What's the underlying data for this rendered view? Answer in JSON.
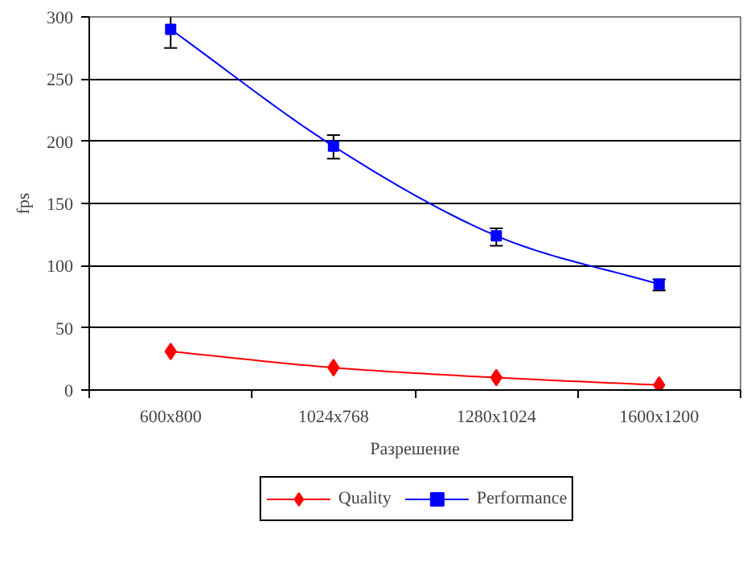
{
  "chart_data": {
    "type": "line",
    "xlabel": "Разрешение",
    "ylabel": "fps",
    "categories": [
      "600x800",
      "1024x768",
      "1280x1024",
      "1600x1200"
    ],
    "series": [
      {
        "name": "Quality",
        "color": "#ff0000",
        "marker": "diamond",
        "values": [
          31,
          18,
          10,
          4
        ]
      },
      {
        "name": "Performance",
        "color": "#0000ff",
        "marker": "square",
        "values": [
          290,
          196,
          124,
          85
        ],
        "errors": [
          [
            275,
            304
          ],
          [
            186,
            205
          ],
          [
            116,
            130
          ],
          [
            80,
            89
          ]
        ]
      }
    ],
    "ylim": [
      0,
      300
    ],
    "yticks": [
      0,
      50,
      100,
      150,
      200,
      250,
      300
    ],
    "grid": "y",
    "legend": "bottom"
  }
}
